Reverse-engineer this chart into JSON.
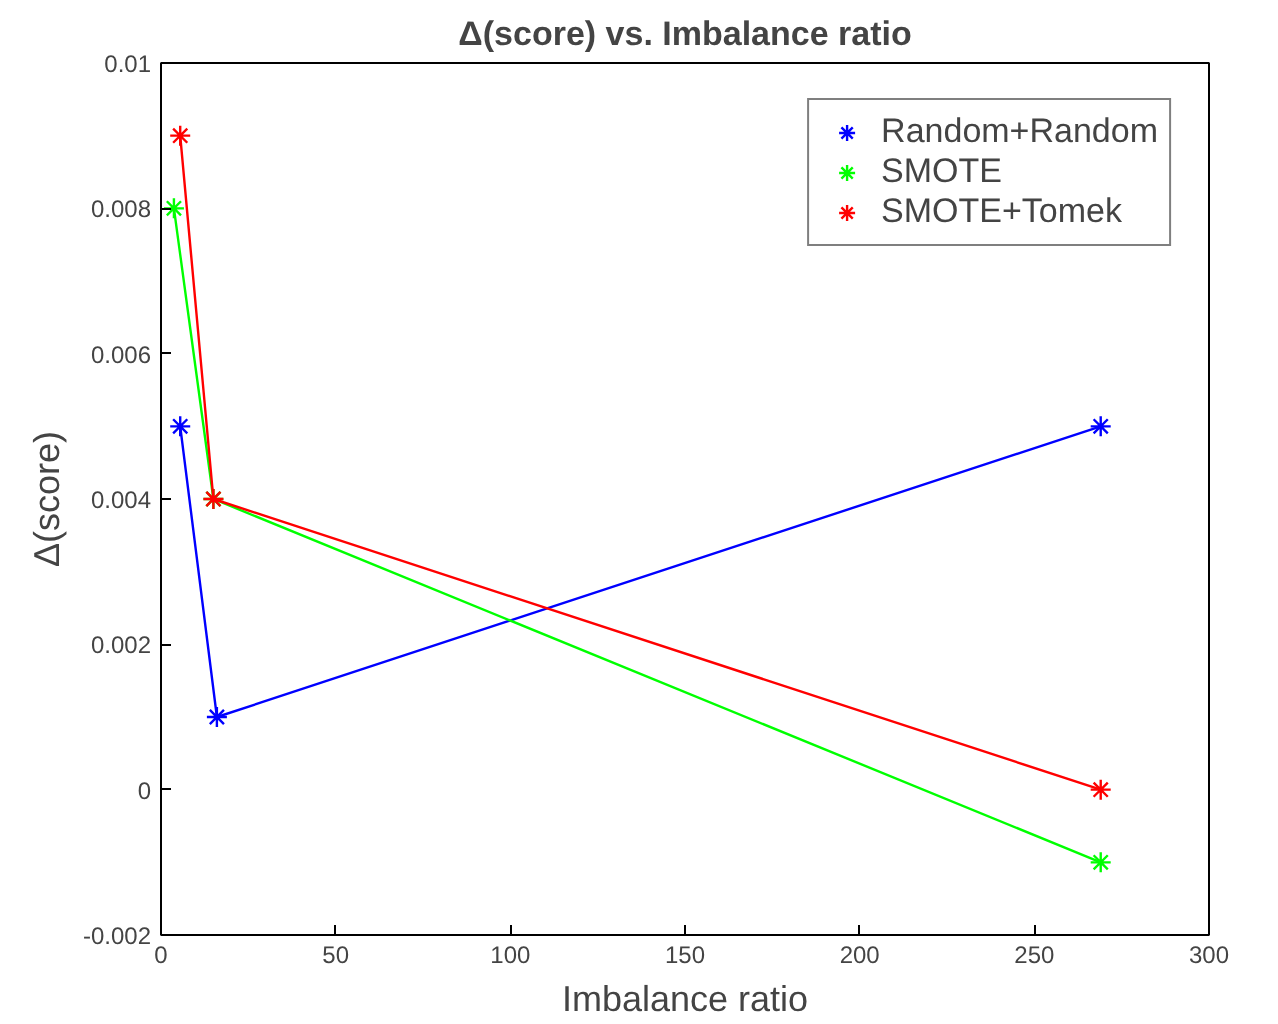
{
  "chart_data": {
    "type": "line",
    "title": "Δ(score) vs. Imbalance ratio",
    "xlabel": "Imbalance ratio",
    "ylabel": "Δ(score)",
    "xlim": [
      0,
      300
    ],
    "xticks": [
      0,
      50,
      100,
      150,
      200,
      250,
      300
    ],
    "ylim": [
      -0.002,
      0.01
    ],
    "yticks": [
      -0.002,
      0,
      0.002,
      0.004,
      0.006,
      0.008,
      0.01
    ],
    "grid": false,
    "legend": "top right",
    "marker": "cross",
    "line_style": "solid",
    "series": [
      {
        "name": "Random+Random",
        "color": "#0000ff",
        "x": [
          5.5,
          16,
          269
        ],
        "values": [
          0.005,
          0.001,
          0.005
        ]
      },
      {
        "name": "SMOTE",
        "color": "#00ff00",
        "x": [
          3.7,
          15,
          269
        ],
        "values": [
          0.008,
          0.004,
          -0.001
        ]
      },
      {
        "name": "SMOTE+Tomek",
        "color": "#ff0000",
        "x": [
          5.5,
          15,
          269
        ],
        "values": [
          0.009,
          0.004,
          0.0
        ]
      }
    ]
  }
}
